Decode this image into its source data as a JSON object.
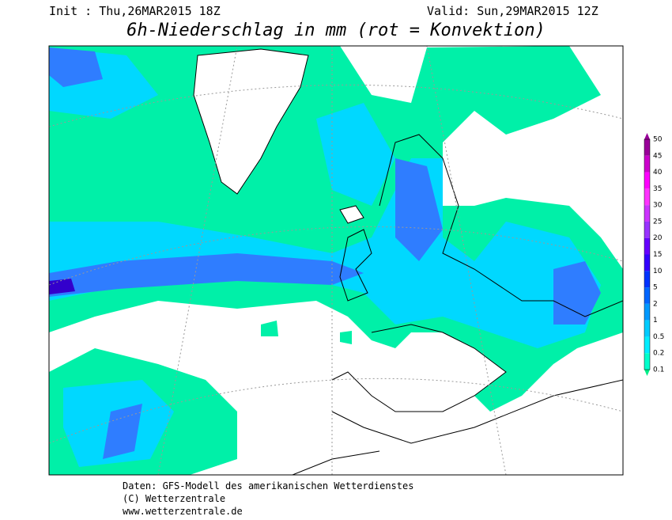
{
  "header": {
    "init": "Init : Thu,26MAR2015 18Z",
    "valid": "Valid: Sun,29MAR2015 12Z",
    "title": "6h-Niederschlag in mm (rot = Konvektion)"
  },
  "legend": {
    "levels": [
      {
        "label": "50",
        "color": "#990099"
      },
      {
        "label": "45",
        "color": "#cc00cc"
      },
      {
        "label": "40",
        "color": "#ff00ff"
      },
      {
        "label": "35",
        "color": "#ff33ff"
      },
      {
        "label": "30",
        "color": "#cc33ff"
      },
      {
        "label": "25",
        "color": "#9933ff"
      },
      {
        "label": "20",
        "color": "#6600ff"
      },
      {
        "label": "15",
        "color": "#3300ff"
      },
      {
        "label": "10",
        "color": "#0033ff"
      },
      {
        "label": "5",
        "color": "#0066ff"
      },
      {
        "label": "2",
        "color": "#0099ff"
      },
      {
        "label": "1",
        "color": "#00ccff"
      },
      {
        "label": "0.5",
        "color": "#00eeff"
      },
      {
        "label": "0.2",
        "color": "#00ffcc"
      },
      {
        "label": "0.1",
        "color": "#00ee88"
      }
    ]
  },
  "footer": {
    "line1": "Daten: GFS-Modell des amerikanischen Wetterdienstes",
    "line2": "(C) Wetterzentrale",
    "line3": "www.wetterzentrale.de"
  }
}
